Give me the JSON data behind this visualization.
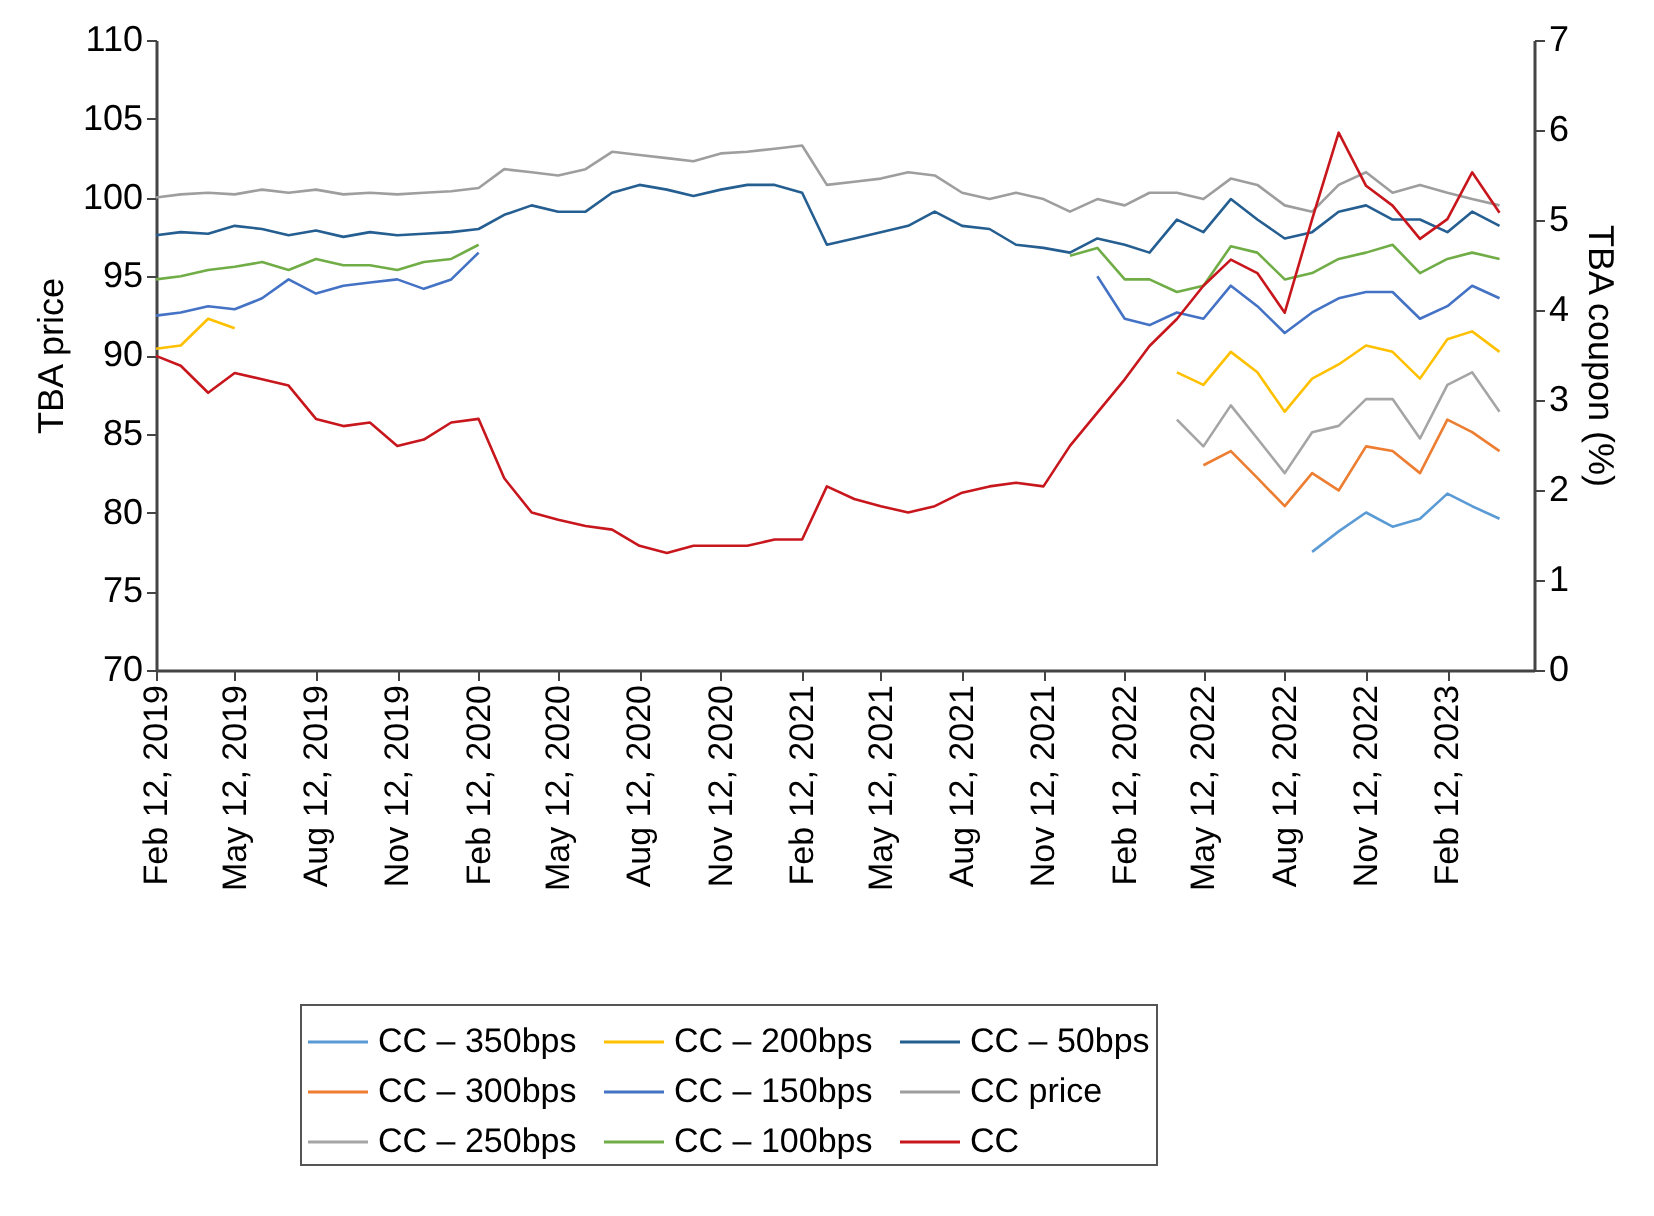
{
  "chart_data": {
    "type": "line",
    "ylabel": "TBA price",
    "y2label": "TBA coupon (%)",
    "x": [
      "2019-02-12",
      "2019-03-12",
      "2019-04-12",
      "2019-05-12",
      "2019-06-12",
      "2019-07-12",
      "2019-08-12",
      "2019-09-12",
      "2019-10-12",
      "2019-11-12",
      "2019-12-12",
      "2020-01-12",
      "2020-02-12",
      "2020-03-12",
      "2020-04-12",
      "2020-05-12",
      "2020-06-12",
      "2020-07-12",
      "2020-08-12",
      "2020-09-12",
      "2020-10-12",
      "2020-11-12",
      "2020-12-12",
      "2021-01-12",
      "2021-02-12",
      "2021-03-12",
      "2021-04-12",
      "2021-05-12",
      "2021-06-12",
      "2021-07-12",
      "2021-08-12",
      "2021-09-12",
      "2021-10-12",
      "2021-11-12",
      "2021-12-12",
      "2022-01-12",
      "2022-02-12",
      "2022-03-12",
      "2022-04-12",
      "2022-05-12",
      "2022-06-12",
      "2022-07-12",
      "2022-08-12",
      "2022-09-12",
      "2022-10-12",
      "2022-11-12",
      "2022-12-12",
      "2023-01-12",
      "2023-02-12",
      "2023-03-12",
      "2023-04-12"
    ],
    "series": [
      {
        "name": "CC – 350bps",
        "color": "#5b9bd5",
        "values": [
          null,
          null,
          null,
          null,
          null,
          null,
          null,
          null,
          null,
          null,
          null,
          null,
          null,
          null,
          null,
          null,
          null,
          null,
          null,
          null,
          null,
          null,
          null,
          null,
          null,
          null,
          null,
          null,
          null,
          null,
          null,
          null,
          null,
          null,
          null,
          null,
          null,
          null,
          null,
          null,
          null,
          null,
          null,
          77.5,
          78.8,
          80.0,
          79.1,
          79.6,
          81.2,
          80.4,
          79.6
        ]
      },
      {
        "name": "CC – 300bps",
        "color": "#ed7d31",
        "values": [
          null,
          null,
          null,
          null,
          null,
          null,
          null,
          null,
          null,
          null,
          null,
          null,
          null,
          null,
          null,
          null,
          null,
          null,
          null,
          null,
          null,
          null,
          null,
          null,
          null,
          null,
          null,
          null,
          null,
          null,
          null,
          null,
          null,
          null,
          null,
          null,
          null,
          null,
          null,
          83.0,
          83.9,
          82.2,
          80.4,
          82.5,
          81.4,
          84.2,
          83.9,
          82.5,
          85.9,
          85.1,
          83.9
        ]
      },
      {
        "name": "CC – 250bps",
        "color": "#a5a5a5",
        "values": [
          null,
          null,
          null,
          null,
          null,
          null,
          null,
          null,
          null,
          null,
          null,
          null,
          null,
          null,
          null,
          null,
          null,
          null,
          null,
          null,
          null,
          null,
          null,
          null,
          null,
          null,
          null,
          null,
          null,
          null,
          null,
          null,
          null,
          null,
          null,
          null,
          null,
          null,
          85.9,
          84.2,
          86.8,
          84.7,
          82.5,
          85.1,
          85.5,
          87.2,
          87.2,
          84.7,
          88.1,
          88.9,
          86.4
        ]
      },
      {
        "name": "CC – 200bps",
        "color": "#ffc000",
        "values": [
          90.4,
          90.6,
          92.3,
          91.7,
          null,
          null,
          null,
          null,
          null,
          null,
          null,
          null,
          null,
          null,
          null,
          null,
          null,
          null,
          null,
          null,
          null,
          null,
          null,
          null,
          null,
          null,
          null,
          null,
          null,
          null,
          null,
          null,
          null,
          null,
          null,
          null,
          null,
          null,
          88.9,
          88.1,
          90.2,
          88.9,
          86.4,
          88.5,
          89.4,
          90.6,
          90.2,
          88.5,
          91.0,
          91.5,
          90.2
        ]
      },
      {
        "name": "CC – 150bps",
        "color": "#4472c4",
        "values": [
          92.5,
          92.7,
          93.1,
          92.9,
          93.6,
          94.8,
          93.9,
          94.4,
          94.6,
          94.8,
          94.2,
          94.8,
          96.5,
          null,
          null,
          null,
          null,
          null,
          null,
          null,
          null,
          null,
          null,
          null,
          null,
          null,
          null,
          null,
          null,
          null,
          null,
          null,
          null,
          null,
          null,
          95.0,
          92.3,
          91.9,
          92.7,
          92.3,
          94.4,
          93.1,
          91.4,
          92.7,
          93.6,
          94.0,
          94.0,
          92.3,
          93.1,
          94.4,
          93.6
        ]
      },
      {
        "name": "CC – 100bps",
        "color": "#70ad47",
        "values": [
          94.8,
          95.0,
          95.4,
          95.6,
          95.9,
          95.4,
          96.1,
          95.7,
          95.7,
          95.4,
          95.9,
          96.1,
          97.0,
          null,
          null,
          null,
          null,
          null,
          null,
          null,
          null,
          null,
          null,
          null,
          null,
          null,
          null,
          null,
          null,
          null,
          null,
          null,
          null,
          null,
          96.3,
          96.8,
          94.8,
          94.8,
          94.0,
          94.4,
          96.9,
          96.5,
          94.8,
          95.2,
          96.1,
          96.5,
          97.0,
          95.2,
          96.1,
          96.5,
          96.1
        ]
      },
      {
        "name": "CC – 50bps",
        "color": "#255e91",
        "values": [
          97.6,
          97.8,
          97.7,
          98.2,
          98.0,
          97.6,
          97.9,
          97.5,
          97.8,
          97.6,
          97.7,
          97.8,
          98.0,
          98.9,
          99.5,
          99.1,
          99.1,
          100.3,
          100.8,
          100.5,
          100.1,
          100.5,
          100.8,
          100.8,
          100.3,
          97.0,
          97.4,
          97.8,
          98.2,
          99.1,
          98.2,
          98.0,
          97.0,
          96.8,
          96.5,
          97.4,
          97.0,
          96.5,
          98.6,
          97.8,
          99.9,
          98.6,
          97.4,
          97.8,
          99.1,
          99.5,
          98.6,
          98.6,
          97.8,
          99.1,
          98.2
        ]
      },
      {
        "name": "CC price",
        "color": "#9e9e9e",
        "values": [
          100.0,
          100.2,
          100.3,
          100.2,
          100.5,
          100.3,
          100.5,
          100.2,
          100.3,
          100.2,
          100.3,
          100.4,
          100.6,
          101.8,
          101.6,
          101.4,
          101.8,
          102.9,
          102.7,
          102.5,
          102.3,
          102.8,
          102.9,
          103.1,
          103.3,
          100.8,
          101.0,
          101.2,
          101.6,
          101.4,
          100.3,
          99.9,
          100.3,
          99.9,
          99.1,
          99.9,
          99.5,
          100.3,
          100.3,
          99.9,
          101.2,
          100.8,
          99.5,
          99.1,
          100.8,
          101.6,
          100.3,
          100.8,
          100.3,
          99.9,
          99.5
        ]
      },
      {
        "name": "CC",
        "color": "#c8161d",
        "axis": "y2",
        "values": [
          3.49,
          3.38,
          3.08,
          3.3,
          3.23,
          3.16,
          2.79,
          2.71,
          2.75,
          2.49,
          2.56,
          2.75,
          2.79,
          2.13,
          1.75,
          1.67,
          1.6,
          1.56,
          1.38,
          1.3,
          1.38,
          1.38,
          1.38,
          1.45,
          1.45,
          2.04,
          1.9,
          1.82,
          1.75,
          1.82,
          1.97,
          2.04,
          2.08,
          2.04,
          2.49,
          2.86,
          3.23,
          3.6,
          3.9,
          4.27,
          4.56,
          4.41,
          3.97,
          5.01,
          5.97,
          5.38,
          5.16,
          4.79,
          5.01,
          5.53,
          5.08
        ]
      }
    ],
    "xlim": [
      "2019-02-12",
      "2023-05-21"
    ],
    "xticks": [
      {
        "value": "2019-02-12",
        "label": "Feb 12, 2019"
      },
      {
        "value": "2019-05-12",
        "label": "May 12, 2019"
      },
      {
        "value": "2019-08-12",
        "label": "Aug 12, 2019"
      },
      {
        "value": "2019-11-12",
        "label": "Nov 12, 2019"
      },
      {
        "value": "2020-02-12",
        "label": "Feb 12, 2020"
      },
      {
        "value": "2020-05-12",
        "label": "May 12, 2020"
      },
      {
        "value": "2020-08-12",
        "label": "Aug 12, 2020"
      },
      {
        "value": "2020-11-12",
        "label": "Nov 12, 2020"
      },
      {
        "value": "2021-02-12",
        "label": "Feb 12, 2021"
      },
      {
        "value": "2021-05-12",
        "label": "May 12, 2021"
      },
      {
        "value": "2021-08-12",
        "label": "Aug 12, 2021"
      },
      {
        "value": "2021-11-12",
        "label": "Nov 12, 2021"
      },
      {
        "value": "2022-02-12",
        "label": "Feb 12, 2022"
      },
      {
        "value": "2022-05-12",
        "label": "May 12, 2022"
      },
      {
        "value": "2022-08-12",
        "label": "Aug 12, 2022"
      },
      {
        "value": "2022-11-12",
        "label": "Nov 12, 2022"
      },
      {
        "value": "2023-02-12",
        "label": "Feb 12, 2023"
      }
    ],
    "ylim": [
      70,
      110
    ],
    "yticks": [
      70,
      75,
      80,
      85,
      90,
      95,
      100,
      105,
      110
    ],
    "y2lim": [
      0,
      7
    ],
    "y2ticks": [
      0,
      1,
      2,
      3,
      4,
      5,
      6,
      7
    ],
    "grid": false,
    "legend": "bottom"
  }
}
